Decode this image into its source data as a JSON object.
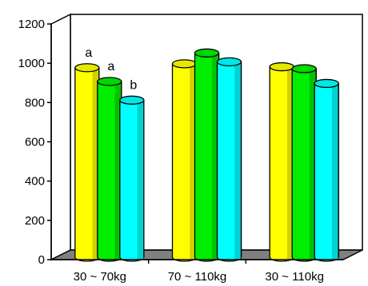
{
  "chart_data": {
    "type": "bar",
    "style": "3d-cylinder",
    "categories": [
      "30 ~ 70kg",
      "70 ~ 110kg",
      "30 ~ 110kg"
    ],
    "series": [
      {
        "values": [
          965,
          985,
          970
        ],
        "color": "#ffff00"
      },
      {
        "values": [
          895,
          1040,
          960
        ],
        "color": "#00ee00"
      },
      {
        "values": [
          800,
          995,
          885
        ],
        "color": "#00ffff"
      }
    ],
    "annotations": [
      {
        "category": 0,
        "series": 0,
        "text": "a"
      },
      {
        "category": 0,
        "series": 1,
        "text": "a"
      },
      {
        "category": 0,
        "series": 2,
        "text": "b"
      }
    ],
    "yticks": [
      0,
      200,
      400,
      600,
      800,
      1000,
      1200
    ],
    "ylim": [
      0,
      1200
    ],
    "grid": false,
    "legend": "none",
    "floor_color": "#808080"
  }
}
